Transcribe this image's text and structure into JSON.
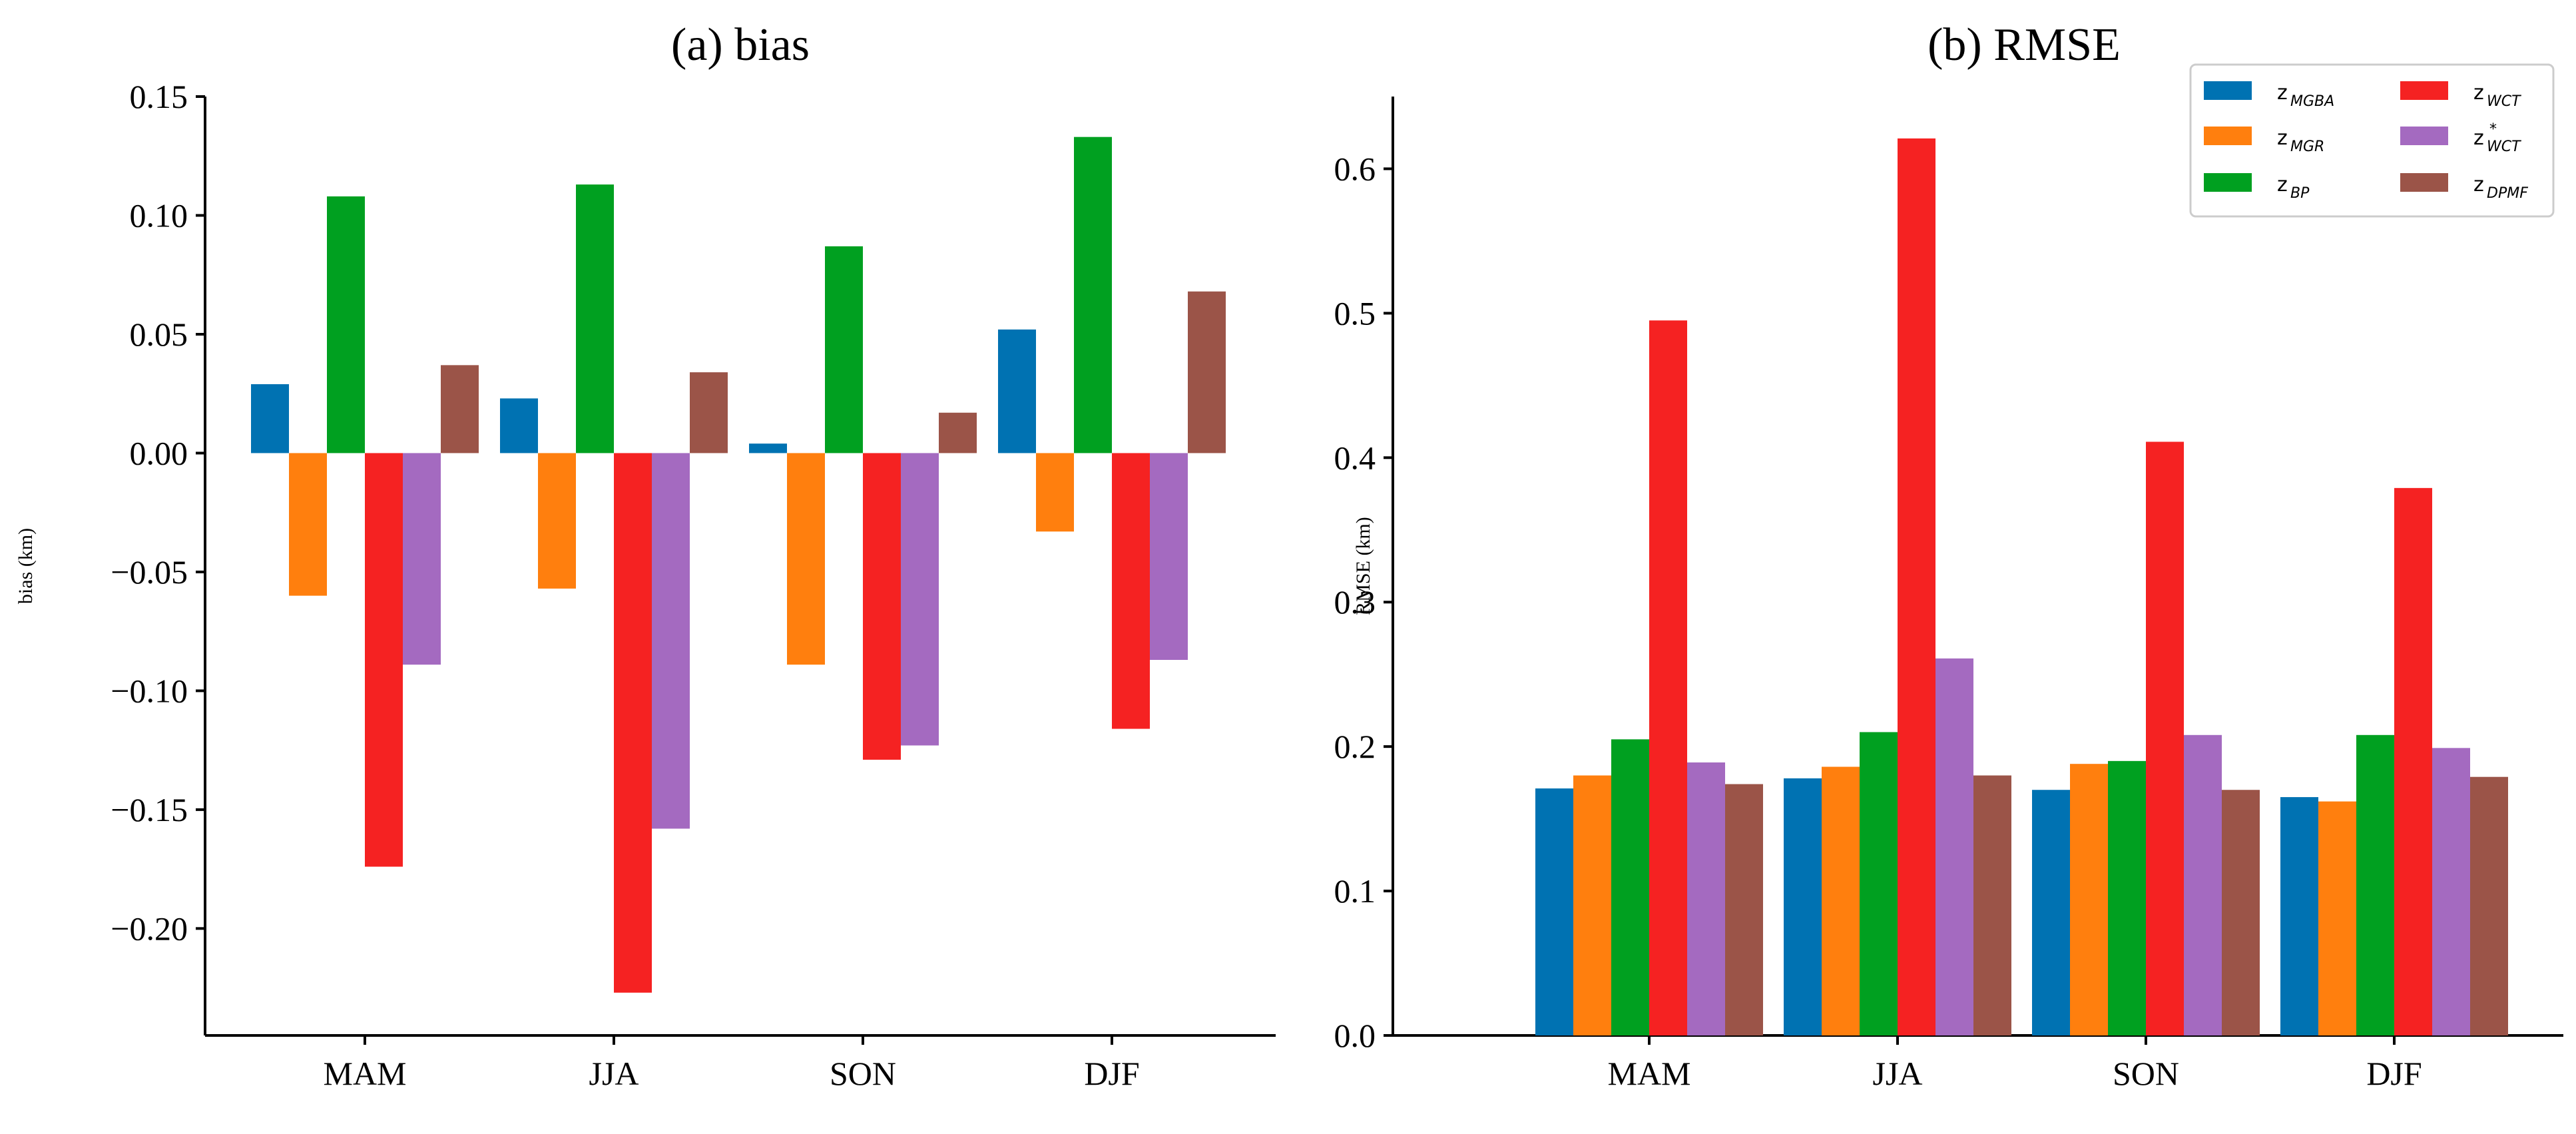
{
  "chart_data": [
    {
      "type": "bar",
      "title": "(a) bias",
      "xlabel": "",
      "ylabel": "bias (km)",
      "ylim": [
        -0.245,
        0.15
      ],
      "yticks": [
        0.15,
        0.1,
        0.05,
        0.0,
        -0.05,
        -0.1,
        -0.15,
        -0.2
      ],
      "ytick_labels": [
        "0.15",
        "0.10",
        "0.05",
        "0.00",
        "−0.05",
        "−0.10",
        "−0.15",
        "−0.20"
      ],
      "categories": [
        "MAM",
        "JJA",
        "SON",
        "DJF"
      ],
      "series": [
        {
          "name": "z_MGBA",
          "values": [
            0.029,
            0.023,
            0.004,
            0.052
          ]
        },
        {
          "name": "z_MGR",
          "values": [
            -0.06,
            -0.057,
            -0.089,
            -0.033
          ]
        },
        {
          "name": "z_BP",
          "values": [
            0.108,
            0.113,
            0.087,
            0.133
          ]
        },
        {
          "name": "z_WCT",
          "values": [
            -0.174,
            -0.227,
            -0.129,
            -0.116
          ]
        },
        {
          "name": "z*_WCT",
          "values": [
            -0.089,
            -0.158,
            -0.123,
            -0.087
          ]
        },
        {
          "name": "z_DPMF",
          "values": [
            0.037,
            0.034,
            0.017,
            0.068
          ]
        }
      ]
    },
    {
      "type": "bar",
      "title": "(b) RMSE",
      "xlabel": "",
      "ylabel": "RMSE (km)",
      "ylim": [
        0,
        0.65
      ],
      "yticks": [
        0.0,
        0.1,
        0.2,
        0.3,
        0.4,
        0.5,
        0.6
      ],
      "ytick_labels": [
        "0.0",
        "0.1",
        "0.2",
        "0.3",
        "0.4",
        "0.5",
        "0.6"
      ],
      "categories": [
        "MAM",
        "JJA",
        "SON",
        "DJF"
      ],
      "legend_position": "top-right",
      "series": [
        {
          "name": "z_MGBA",
          "values": [
            0.171,
            0.178,
            0.17,
            0.165
          ]
        },
        {
          "name": "z_MGR",
          "values": [
            0.18,
            0.186,
            0.188,
            0.162
          ]
        },
        {
          "name": "z_BP",
          "values": [
            0.205,
            0.21,
            0.19,
            0.208
          ]
        },
        {
          "name": "z_WCT",
          "values": [
            0.495,
            0.621,
            0.411,
            0.379
          ]
        },
        {
          "name": "z*_WCT",
          "values": [
            0.189,
            0.261,
            0.208,
            0.199
          ]
        },
        {
          "name": "z_DPMF",
          "values": [
            0.174,
            0.18,
            0.17,
            0.179
          ]
        }
      ]
    }
  ],
  "legend": [
    {
      "base": "z",
      "sub": "MGBA",
      "sup": "",
      "color": "#0072b2"
    },
    {
      "base": "z",
      "sub": "MGR",
      "sup": "",
      "color": "#ff7f0e"
    },
    {
      "base": "z",
      "sub": "BP",
      "sup": "",
      "color": "#00a020"
    },
    {
      "base": "z",
      "sub": "WCT",
      "sup": "",
      "color": "#f52222"
    },
    {
      "base": "z",
      "sub": "WCT",
      "sup": "*",
      "color": "#a46ac0"
    },
    {
      "base": "z",
      "sub": "DPMF",
      "sup": "",
      "color": "#9b5448"
    }
  ]
}
